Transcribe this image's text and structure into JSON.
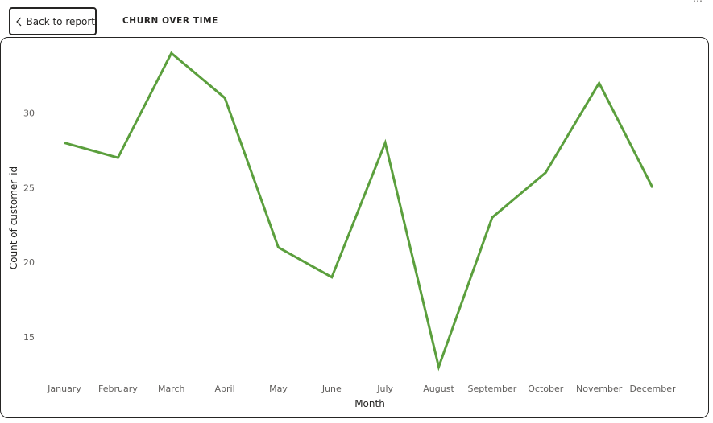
{
  "header": {
    "back_label": "Back to report",
    "title": "CHURN OVER TIME"
  },
  "chart_data": {
    "type": "line",
    "categories": [
      "January",
      "February",
      "March",
      "April",
      "May",
      "June",
      "July",
      "August",
      "September",
      "October",
      "November",
      "December"
    ],
    "series": [
      {
        "values": [
          28,
          27,
          34,
          31,
          21,
          19,
          28,
          13,
          23,
          26,
          32,
          25
        ],
        "color": "#5b9f3d"
      }
    ],
    "title": "",
    "xlabel": "Month",
    "ylabel": "Count of customer_id",
    "ylim": [
      12.5,
      35
    ],
    "yticks": [
      15,
      20,
      25,
      30
    ],
    "grid": false,
    "legend": "none"
  }
}
